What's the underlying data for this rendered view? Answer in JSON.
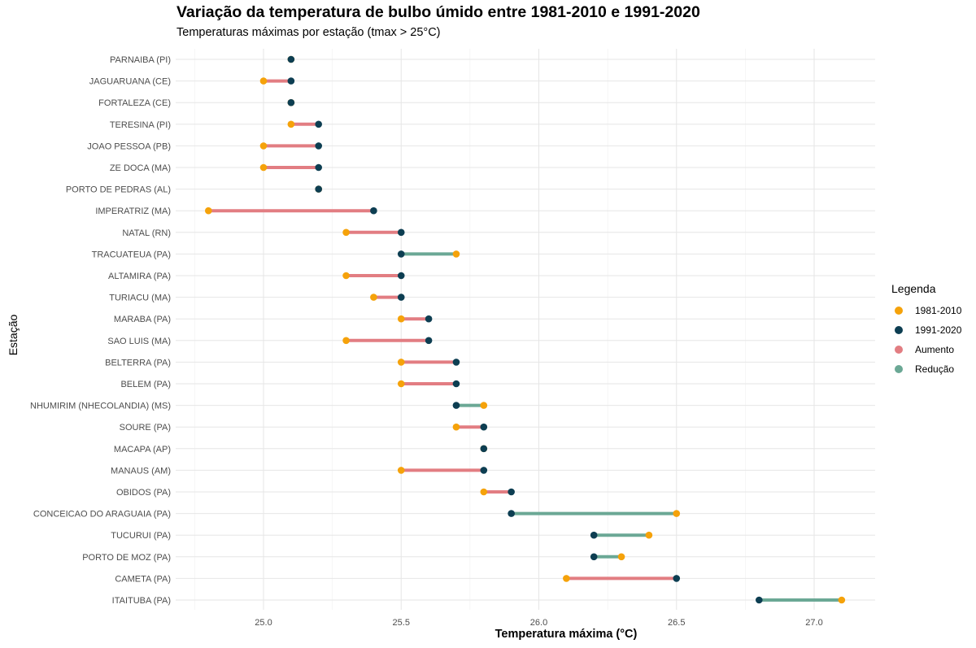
{
  "chart_data": {
    "type": "dumbbell",
    "title": "Variação da temperatura de bulbo úmido entre 1981-2010 e 1991-2020",
    "subtitle": "Temperaturas máximas por estação (tmax > 25°C)",
    "xlabel": "Temperatura máxima (°C)",
    "ylabel": "Estação",
    "xlim": [
      24.75,
      27.2
    ],
    "x_ticks": [
      25.0,
      25.5,
      26.0,
      26.5,
      27.0
    ],
    "x_tick_labels": [
      "25.0",
      "25.5",
      "26.0",
      "26.5",
      "27.0"
    ],
    "grid": true,
    "legend": {
      "title": "Legenda",
      "position": "right",
      "items": [
        {
          "label": "1981-2010",
          "color": "#F5A20A"
        },
        {
          "label": "1991-2020",
          "color": "#0D3E52"
        },
        {
          "label": "Aumento",
          "color": "#E27D82"
        },
        {
          "label": "Redução",
          "color": "#6BA895"
        }
      ]
    },
    "colors": {
      "p1981": "#F5A20A",
      "p1991": "#0D3E52",
      "aumento": "#E27D82",
      "reducao": "#6BA895"
    },
    "series_names": [
      "1981-2010",
      "1991-2020"
    ],
    "stations": [
      {
        "name": "PARNAIBA (PI)",
        "v1981": 25.1,
        "v1991": 25.1
      },
      {
        "name": "JAGUARUANA (CE)",
        "v1981": 25.0,
        "v1991": 25.1
      },
      {
        "name": "FORTALEZA (CE)",
        "v1981": 25.1,
        "v1991": 25.1
      },
      {
        "name": "TERESINA (PI)",
        "v1981": 25.1,
        "v1991": 25.2
      },
      {
        "name": "JOAO PESSOA (PB)",
        "v1981": 25.0,
        "v1991": 25.2
      },
      {
        "name": "ZE DOCA (MA)",
        "v1981": 25.0,
        "v1991": 25.2
      },
      {
        "name": "PORTO DE PEDRAS (AL)",
        "v1981": 25.2,
        "v1991": 25.2
      },
      {
        "name": "IMPERATRIZ (MA)",
        "v1981": 24.8,
        "v1991": 25.4
      },
      {
        "name": "NATAL (RN)",
        "v1981": 25.3,
        "v1991": 25.5
      },
      {
        "name": "TRACUATEUA (PA)",
        "v1981": 25.7,
        "v1991": 25.5
      },
      {
        "name": "ALTAMIRA (PA)",
        "v1981": 25.3,
        "v1991": 25.5
      },
      {
        "name": "TURIACU (MA)",
        "v1981": 25.4,
        "v1991": 25.5
      },
      {
        "name": "MARABA (PA)",
        "v1981": 25.5,
        "v1991": 25.6
      },
      {
        "name": "SAO LUIS (MA)",
        "v1981": 25.3,
        "v1991": 25.6
      },
      {
        "name": "BELTERRA (PA)",
        "v1981": 25.5,
        "v1991": 25.7
      },
      {
        "name": "BELEM (PA)",
        "v1981": 25.5,
        "v1991": 25.7
      },
      {
        "name": "NHUMIRIM (NHECOLANDIA) (MS)",
        "v1981": 25.8,
        "v1991": 25.7
      },
      {
        "name": "SOURE (PA)",
        "v1981": 25.7,
        "v1991": 25.8
      },
      {
        "name": "MACAPA (AP)",
        "v1981": 25.8,
        "v1991": 25.8
      },
      {
        "name": "MANAUS (AM)",
        "v1981": 25.5,
        "v1991": 25.8
      },
      {
        "name": "OBIDOS (PA)",
        "v1981": 25.8,
        "v1991": 25.9
      },
      {
        "name": "CONCEICAO DO ARAGUAIA (PA)",
        "v1981": 26.5,
        "v1991": 25.9
      },
      {
        "name": "TUCURUI (PA)",
        "v1981": 26.4,
        "v1991": 26.2
      },
      {
        "name": "PORTO DE MOZ (PA)",
        "v1981": 26.3,
        "v1991": 26.2
      },
      {
        "name": "CAMETA (PA)",
        "v1981": 26.1,
        "v1991": 26.5
      },
      {
        "name": "ITAITUBA (PA)",
        "v1981": 27.1,
        "v1991": 26.8
      }
    ]
  }
}
